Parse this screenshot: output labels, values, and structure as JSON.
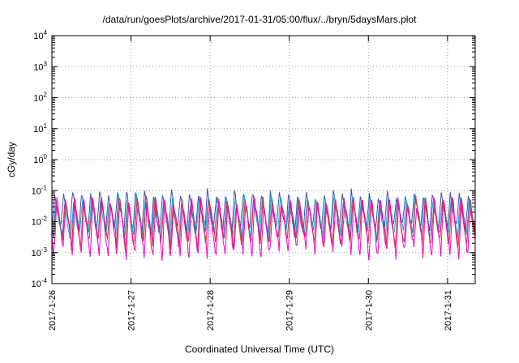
{
  "chart_data": {
    "type": "line",
    "title": "/data/run/goesPlots/archive/2017-01-31/05:00/flux/../bryn/5daysMars.plot",
    "xlabel": "Coordinated Universal Time (UTC)",
    "ylabel": "cGy/day",
    "y_scale": "log",
    "ylim": [
      0.0001,
      10000
    ],
    "y_tick_exponents": [
      4,
      3,
      2,
      1,
      0,
      -1,
      -2,
      -3,
      -4
    ],
    "x_ticks": [
      {
        "label": "2017-1-26",
        "day": 0
      },
      {
        "label": "2017-1-27",
        "day": 1
      },
      {
        "label": "2017-1-28",
        "day": 2
      },
      {
        "label": "2017-1-29",
        "day": 3
      },
      {
        "label": "2017-1-30",
        "day": 4
      },
      {
        "label": "2017-1-31",
        "day": 5
      }
    ],
    "x_range_days": [
      0,
      5.35
    ],
    "grid": true,
    "legend": "none",
    "grid_color": "#999999",
    "border_color": "#000000",
    "series": [
      {
        "name": "blue",
        "color": "#3a50b8",
        "peak": 0.085,
        "trough": 0.005,
        "cycles_per_day": 8.8,
        "phase": 0.0,
        "seed": 11
      },
      {
        "name": "cyan",
        "color": "#00b6c8",
        "peak": 0.055,
        "trough": 0.0035,
        "cycles_per_day": 8.8,
        "phase": 0.1,
        "seed": 22
      },
      {
        "name": "red",
        "color": "#cc3344",
        "peak": 0.05,
        "trough": 0.0018,
        "cycles_per_day": 8.8,
        "phase": 0.18,
        "seed": 33
      },
      {
        "name": "magenta",
        "color": "#ff00bb",
        "peak": 0.045,
        "trough": 0.0009,
        "cycles_per_day": 8.8,
        "phase": 0.26,
        "seed": 44
      }
    ]
  }
}
